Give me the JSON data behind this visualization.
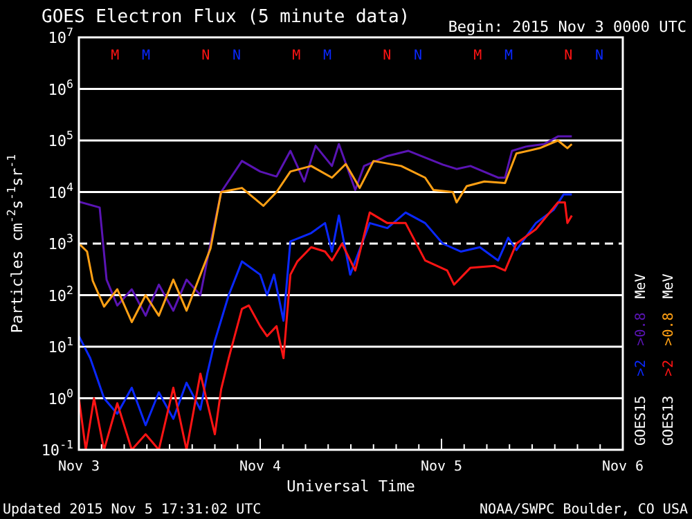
{
  "chart_data": {
    "type": "line",
    "title": "GOES Electron Flux (5 minute data)",
    "subtitle": "Begin: 2015 Nov 3 0000 UTC",
    "xlabel": "Universal Time",
    "ylabel": "Particles cm$^{-2}$s$^{-1}$sr$^{-1}$",
    "log": "y",
    "grid": "y",
    "legend": "right",
    "line_style": "solid",
    "marker": "none",
    "xlim": [
      "2015-11-03T00:00",
      "2015-11-06T00:00"
    ],
    "xticks": [
      {
        "value": "2015-11-03T00:00",
        "label": "Nov 3"
      },
      {
        "value": "2015-11-03T03:00",
        "label": null
      },
      {
        "value": "2015-11-03T06:00",
        "label": null
      },
      {
        "value": "2015-11-03T09:00",
        "label": null
      },
      {
        "value": "2015-11-03T12:00",
        "label": null
      },
      {
        "value": "2015-11-03T15:00",
        "label": null
      },
      {
        "value": "2015-11-03T18:00",
        "label": null
      },
      {
        "value": "2015-11-03T21:00",
        "label": null
      },
      {
        "value": "2015-11-04T00:00",
        "label": "Nov 4"
      },
      {
        "value": "2015-11-04T03:00",
        "label": null
      },
      {
        "value": "2015-11-04T06:00",
        "label": null
      },
      {
        "value": "2015-11-04T09:00",
        "label": null
      },
      {
        "value": "2015-11-04T12:00",
        "label": null
      },
      {
        "value": "2015-11-04T15:00",
        "label": null
      },
      {
        "value": "2015-11-04T18:00",
        "label": null
      },
      {
        "value": "2015-11-04T21:00",
        "label": null
      },
      {
        "value": "2015-11-05T00:00",
        "label": "Nov 5"
      },
      {
        "value": "2015-11-05T03:00",
        "label": null
      },
      {
        "value": "2015-11-05T06:00",
        "label": null
      },
      {
        "value": "2015-11-05T09:00",
        "label": null
      },
      {
        "value": "2015-11-05T12:00",
        "label": null
      },
      {
        "value": "2015-11-05T15:00",
        "label": null
      },
      {
        "value": "2015-11-05T18:00",
        "label": null
      },
      {
        "value": "2015-11-05T21:00",
        "label": null
      },
      {
        "value": "2015-11-06T00:00",
        "label": "Nov 6"
      }
    ],
    "ylim": [
      0.1,
      10000000
    ],
    "yticks": [
      {
        "value": 0.1,
        "label": "10$^{-1}$"
      },
      {
        "value": 1,
        "label": "10$^{0}$"
      },
      {
        "value": 10,
        "label": "10$^{1}$"
      },
      {
        "value": 100,
        "label": "10$^{2}$"
      },
      {
        "value": 1000,
        "label": "10$^{3}$"
      },
      {
        "value": 10000,
        "label": "10$^{4}$"
      },
      {
        "value": 100000,
        "label": "10$^{5}$"
      },
      {
        "value": 1000000,
        "label": "10$^{6}$"
      },
      {
        "value": 10000000,
        "label": "10$^{7}$"
      }
    ],
    "ref_lines": [
      {
        "axis": "y",
        "value": 1000,
        "line_style": "dashed",
        "color": "#ffffff"
      }
    ],
    "series": [
      {
        "name": ">2",
        "color": "#0a28ff",
        "x": [
          "2015-11-03T00:00",
          "2015-11-03T01:30",
          "2015-11-03T03:20",
          "2015-11-03T05:05",
          "2015-11-03T07:00",
          "2015-11-03T08:50",
          "2015-11-03T10:35",
          "2015-11-03T12:30",
          "2015-11-03T14:15",
          "2015-11-03T16:05",
          "2015-11-03T17:00",
          "2015-11-03T18:00",
          "2015-11-03T19:50",
          "2015-11-03T21:35",
          "2015-11-04T00:00",
          "2015-11-04T00:55",
          "2015-11-04T01:50",
          "2015-11-04T03:05",
          "2015-11-04T04:00",
          "2015-11-04T06:45",
          "2015-11-04T08:35",
          "2015-11-04T09:30",
          "2015-11-04T10:25",
          "2015-11-04T11:55",
          "2015-11-04T14:30",
          "2015-11-04T16:50",
          "2015-11-04T19:15",
          "2015-11-04T21:50",
          "2015-11-05T00:10",
          "2015-11-05T02:35",
          "2015-11-05T05:05",
          "2015-11-05T07:30",
          "2015-11-05T08:50",
          "2015-11-05T09:55",
          "2015-11-05T12:30",
          "2015-11-05T14:50",
          "2015-11-05T16:10",
          "2015-11-05T17:15"
        ],
        "values": [
          16,
          6,
          1,
          0.5,
          1.6,
          0.3,
          1.3,
          0.4,
          2,
          0.6,
          3,
          13,
          100,
          450,
          250,
          100,
          250,
          32,
          1100,
          1600,
          2500,
          700,
          3500,
          250,
          2500,
          2000,
          4000,
          2500,
          1000,
          700,
          850,
          470,
          1300,
          750,
          2500,
          4500,
          9000,
          9000
        ]
      },
      {
        "name": ">0.8",
        "color": "#5a14b4",
        "x": [
          "2015-11-03T00:00",
          "2015-11-03T02:45",
          "2015-11-03T03:40",
          "2015-11-03T05:05",
          "2015-11-03T07:00",
          "2015-11-03T08:50",
          "2015-11-03T10:35",
          "2015-11-03T12:30",
          "2015-11-03T14:15",
          "2015-11-03T16:05",
          "2015-11-03T17:25",
          "2015-11-03T18:50",
          "2015-11-03T21:35",
          "2015-11-04T00:00",
          "2015-11-04T02:10",
          "2015-11-04T04:00",
          "2015-11-04T05:50",
          "2015-11-04T07:20",
          "2015-11-04T09:30",
          "2015-11-04T10:25",
          "2015-11-04T12:35",
          "2015-11-04T13:45",
          "2015-11-04T16:50",
          "2015-11-04T19:35",
          "2015-11-05T00:10",
          "2015-11-05T02:00",
          "2015-11-05T03:50",
          "2015-11-05T07:30",
          "2015-11-05T08:25",
          "2015-11-05T09:20",
          "2015-11-05T11:10",
          "2015-11-05T13:35",
          "2015-11-05T15:25",
          "2015-11-05T17:15"
        ],
        "values": [
          6500,
          5000,
          200,
          63,
          130,
          40,
          160,
          50,
          200,
          100,
          1000,
          10000,
          40000,
          25000,
          20000,
          63000,
          16000,
          79000,
          32000,
          85000,
          11000,
          32000,
          50000,
          63000,
          34000,
          28000,
          32000,
          19000,
          19000,
          63000,
          76000,
          85000,
          120000,
          120000
        ]
      },
      {
        "name": ">2",
        "color": "#ff1414",
        "x": [
          "2015-11-03T00:00",
          "2015-11-03T00:55",
          "2015-11-03T02:00",
          "2015-11-03T03:20",
          "2015-11-03T05:05",
          "2015-11-03T07:00",
          "2015-11-03T08:50",
          "2015-11-03T10:35",
          "2015-11-03T12:30",
          "2015-11-03T14:15",
          "2015-11-03T16:05",
          "2015-11-03T18:00",
          "2015-11-03T18:50",
          "2015-11-03T19:50",
          "2015-11-03T21:35",
          "2015-11-03T22:30",
          "2015-11-04T00:00",
          "2015-11-04T00:55",
          "2015-11-04T02:10",
          "2015-11-04T03:05",
          "2015-11-04T04:00",
          "2015-11-04T04:55",
          "2015-11-04T06:45",
          "2015-11-04T08:35",
          "2015-11-04T09:30",
          "2015-11-04T10:50",
          "2015-11-04T12:35",
          "2015-11-04T14:30",
          "2015-11-04T16:50",
          "2015-11-04T19:15",
          "2015-11-04T21:50",
          "2015-11-05T00:45",
          "2015-11-05T01:40",
          "2015-11-05T03:50",
          "2015-11-05T07:00",
          "2015-11-05T08:25",
          "2015-11-05T09:55",
          "2015-11-05T12:30",
          "2015-11-05T15:25",
          "2015-11-05T16:20",
          "2015-11-05T16:40",
          "2015-11-05T17:15"
        ],
        "values": [
          1,
          0.1,
          1,
          0.1,
          0.8,
          0.1,
          0.2,
          0.1,
          1.6,
          0.1,
          3,
          0.2,
          1.5,
          6,
          54,
          63,
          25,
          16,
          25,
          6,
          250,
          450,
          850,
          700,
          470,
          1000,
          300,
          4000,
          2500,
          2500,
          470,
          300,
          160,
          340,
          370,
          300,
          1000,
          1900,
          6300,
          6300,
          2500,
          3500
        ]
      },
      {
        "name": ">0.8",
        "color": "#ffa014",
        "x": [
          "2015-11-03T00:00",
          "2015-11-03T01:05",
          "2015-11-03T01:50",
          "2015-11-03T03:20",
          "2015-11-03T05:05",
          "2015-11-03T07:00",
          "2015-11-03T08:50",
          "2015-11-03T10:35",
          "2015-11-03T12:30",
          "2015-11-03T14:15",
          "2015-11-03T16:05",
          "2015-11-03T17:25",
          "2015-11-03T18:50",
          "2015-11-03T21:35",
          "2015-11-04T00:25",
          "2015-11-04T02:10",
          "2015-11-04T04:00",
          "2015-11-04T06:45",
          "2015-11-04T09:30",
          "2015-11-04T11:20",
          "2015-11-04T13:10",
          "2015-11-04T15:00",
          "2015-11-04T18:40",
          "2015-11-04T21:50",
          "2015-11-04T22:55",
          "2015-11-05T01:30",
          "2015-11-05T02:00",
          "2015-11-05T03:20",
          "2015-11-05T05:40",
          "2015-11-05T08:25",
          "2015-11-05T09:55",
          "2015-11-05T13:00",
          "2015-11-05T15:25",
          "2015-11-05T16:40",
          "2015-11-05T17:15"
        ],
        "values": [
          1000,
          700,
          190,
          60,
          130,
          30,
          100,
          40,
          200,
          50,
          250,
          800,
          10000,
          12000,
          5400,
          10000,
          25000,
          32000,
          19000,
          35000,
          12000,
          40000,
          32000,
          19000,
          11000,
          10000,
          6300,
          13000,
          16000,
          15000,
          56000,
          71000,
          100000,
          71000,
          85000
        ]
      }
    ],
    "annotations": [
      "M",
      "M",
      "N",
      "N",
      "M",
      "M",
      "N",
      "N",
      "M",
      "M",
      "N",
      "N",
      "Updated 2015 Nov  5 17:31:02 UTC",
      "NOAA/SWPC Boulder, CO USA",
      "GOES15",
      "MeV",
      "GOES13",
      "MeV"
    ]
  }
}
